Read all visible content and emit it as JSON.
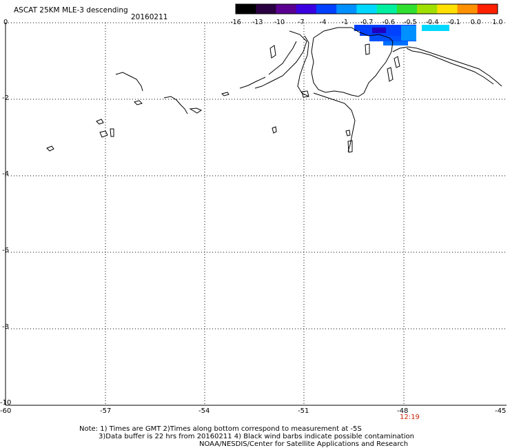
{
  "title": "ASCAT 25KM MLE-3 descending",
  "date": "20160211",
  "colorbar": {
    "labels": [
      "-16",
      "-13",
      "-10",
      "-7",
      "-4",
      "-1",
      "-0.7",
      "-0.6",
      "-0.5",
      "-0.4",
      "-0.1",
      "0.0",
      "1.0"
    ],
    "colors": [
      "#000000",
      "#2a0040",
      "#5a0090",
      "#3a00e0",
      "#0040ff",
      "#0090ff",
      "#00d8ff",
      "#00f0a0",
      "#30e030",
      "#a0e000",
      "#ffe000",
      "#ff9000",
      "#ff2000"
    ]
  },
  "axes": {
    "y_labels": [
      "0",
      "-2",
      "-4",
      "-6",
      "-8",
      "-10"
    ],
    "x_labels": [
      "-60",
      "-57",
      "-54",
      "-51",
      "-48",
      "-45"
    ],
    "grid": "dotted"
  },
  "time_label": "12:19",
  "notes": [
    "Note: 1) Times are GMT 2)Times along bottom correspond to measurement at -5S",
    "3)Data buffer is 22 hrs from 20160211 4) Black wind barbs indicate possible contamination",
    "NOAA/NESDIS/Center for Satellite Applications and Research"
  ],
  "swath_colors": [
    "#0040ff",
    "#0090ff",
    "#00d8ff"
  ]
}
